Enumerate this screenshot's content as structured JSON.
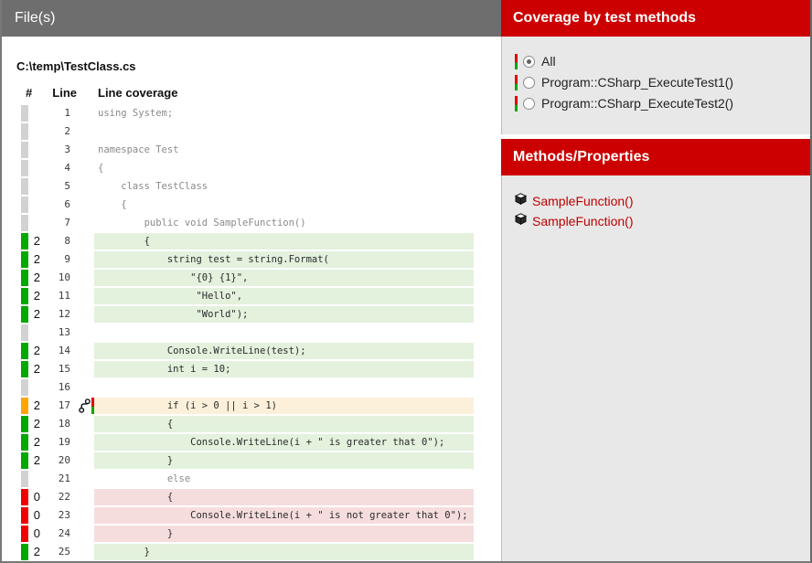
{
  "left": {
    "title": "File(s)",
    "file_path": "C:\\temp\\TestClass.cs",
    "col_hash": "#",
    "col_line": "Line",
    "col_coverage": "Line coverage",
    "rows": [
      {
        "line": "1",
        "count": "",
        "status": "none",
        "branch": false,
        "code": "using System;"
      },
      {
        "line": "2",
        "count": "",
        "status": "none",
        "branch": false,
        "code": ""
      },
      {
        "line": "3",
        "count": "",
        "status": "none",
        "branch": false,
        "code": "namespace Test"
      },
      {
        "line": "4",
        "count": "",
        "status": "none",
        "branch": false,
        "code": "{"
      },
      {
        "line": "5",
        "count": "",
        "status": "none",
        "branch": false,
        "code": "    class TestClass"
      },
      {
        "line": "6",
        "count": "",
        "status": "none",
        "branch": false,
        "code": "    {"
      },
      {
        "line": "7",
        "count": "",
        "status": "none",
        "branch": false,
        "code": "        public void SampleFunction()"
      },
      {
        "line": "8",
        "count": "2",
        "status": "covered",
        "branch": false,
        "code": "        {"
      },
      {
        "line": "9",
        "count": "2",
        "status": "covered",
        "branch": false,
        "code": "            string test = string.Format("
      },
      {
        "line": "10",
        "count": "2",
        "status": "covered",
        "branch": false,
        "code": "                \"{0} {1}\","
      },
      {
        "line": "11",
        "count": "2",
        "status": "covered",
        "branch": false,
        "code": "                 \"Hello\","
      },
      {
        "line": "12",
        "count": "2",
        "status": "covered",
        "branch": false,
        "code": "                 \"World\");"
      },
      {
        "line": "13",
        "count": "",
        "status": "none",
        "branch": false,
        "code": ""
      },
      {
        "line": "14",
        "count": "2",
        "status": "covered",
        "branch": false,
        "code": "            Console.WriteLine(test);"
      },
      {
        "line": "15",
        "count": "2",
        "status": "covered",
        "branch": false,
        "code": "            int i = 10;"
      },
      {
        "line": "16",
        "count": "",
        "status": "none",
        "branch": false,
        "code": ""
      },
      {
        "line": "17",
        "count": "2",
        "status": "partial",
        "branch": true,
        "code": "            if (i > 0 || i > 1)"
      },
      {
        "line": "18",
        "count": "2",
        "status": "covered",
        "branch": false,
        "code": "            {"
      },
      {
        "line": "19",
        "count": "2",
        "status": "covered",
        "branch": false,
        "code": "                Console.WriteLine(i + \" is greater that 0\");"
      },
      {
        "line": "20",
        "count": "2",
        "status": "covered",
        "branch": false,
        "code": "            }"
      },
      {
        "line": "21",
        "count": "",
        "status": "none",
        "branch": false,
        "code": "            else"
      },
      {
        "line": "22",
        "count": "0",
        "status": "uncovered",
        "branch": false,
        "code": "            {"
      },
      {
        "line": "23",
        "count": "0",
        "status": "uncovered",
        "branch": false,
        "code": "                Console.WriteLine(i + \" is not greater that 0\");"
      },
      {
        "line": "24",
        "count": "0",
        "status": "uncovered",
        "branch": false,
        "code": "            }"
      },
      {
        "line": "25",
        "count": "2",
        "status": "covered",
        "branch": false,
        "code": "        }"
      }
    ]
  },
  "right": {
    "tests_title": "Coverage by test methods",
    "tests": [
      {
        "label": "All",
        "selected": true
      },
      {
        "label": "Program::CSharp_ExecuteTest1()",
        "selected": false
      },
      {
        "label": "Program::CSharp_ExecuteTest2()",
        "selected": false
      }
    ],
    "methods_title": "Methods/Properties",
    "methods": [
      {
        "label": "SampleFunction()"
      },
      {
        "label": "SampleFunction()"
      }
    ]
  },
  "colors": {
    "header_gray": "#6e6e6e",
    "header_red": "#cc0000",
    "covered_indicator": "#00a800",
    "uncovered_indicator": "#ee0000",
    "partial_indicator": "#ffa500",
    "not_coverable_indicator": "#d2d2d2",
    "covered_bg": "#e3f1dd",
    "uncovered_bg": "#f6dddd",
    "partial_bg": "#fcf0da",
    "link_red": "#c00000"
  },
  "icons": {
    "branch": "branch-icon",
    "cube": "cube-icon"
  }
}
